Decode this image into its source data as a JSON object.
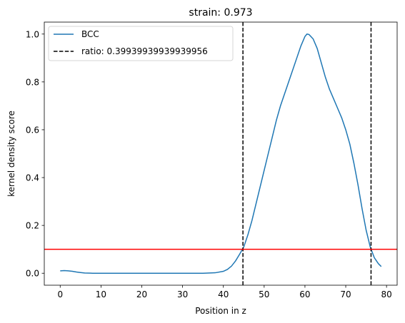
{
  "chart_data": {
    "type": "line",
    "title": "strain: 0.973",
    "xlabel": "Position in z",
    "ylabel": "kernel density score",
    "xlim": [
      -3.9,
      82.6
    ],
    "ylim": [
      -0.05,
      1.05
    ],
    "xticks": [
      0,
      10,
      20,
      30,
      40,
      50,
      60,
      70,
      80
    ],
    "yticks": [
      0.0,
      0.2,
      0.4,
      0.6,
      0.8,
      1.0
    ],
    "grid": false,
    "legend": "top-left",
    "series": [
      {
        "name": "BCC",
        "color": "#1f77b4",
        "style": "solid",
        "x": [
          0,
          1,
          2,
          3,
          4,
          5,
          6,
          8,
          10,
          15,
          20,
          25,
          30,
          35,
          38,
          40,
          41,
          42,
          43,
          44,
          45,
          46,
          47,
          48,
          49,
          50,
          51,
          52,
          53,
          54,
          55,
          56,
          57,
          58,
          59,
          60,
          60.5,
          61,
          62,
          63,
          64,
          65,
          66,
          67,
          68,
          69,
          70,
          71,
          72,
          73,
          74,
          75,
          76,
          77,
          78,
          78.7
        ],
        "y": [
          0.01,
          0.011,
          0.01,
          0.008,
          0.005,
          0.003,
          0.001,
          0,
          0,
          0,
          0,
          0,
          0,
          0,
          0.002,
          0.008,
          0.016,
          0.03,
          0.052,
          0.08,
          0.11,
          0.16,
          0.22,
          0.29,
          0.36,
          0.43,
          0.5,
          0.57,
          0.64,
          0.7,
          0.75,
          0.8,
          0.85,
          0.9,
          0.95,
          0.99,
          1.0,
          0.998,
          0.98,
          0.94,
          0.88,
          0.82,
          0.77,
          0.73,
          0.69,
          0.65,
          0.6,
          0.54,
          0.46,
          0.37,
          0.27,
          0.18,
          0.11,
          0.065,
          0.04,
          0.028
        ]
      }
    ],
    "vlines": [
      {
        "x": 44.8,
        "color": "#000000",
        "style": "dashed",
        "label": "ratio: 0.39939939939939956"
      },
      {
        "x": 76.2,
        "color": "#000000",
        "style": "dashed"
      }
    ],
    "hlines": [
      {
        "y": 0.1,
        "color": "#ff0000",
        "style": "solid"
      }
    ]
  }
}
